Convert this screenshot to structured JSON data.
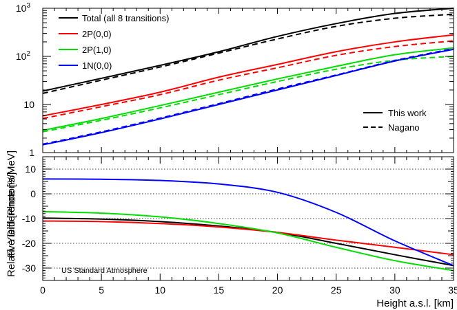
{
  "chart_data": [
    {
      "type": "line",
      "panel": "top",
      "ylabel": "Fl. Yield [Photons/MeV]",
      "xlim": [
        0,
        35
      ],
      "ylim": [
        1,
        1000
      ],
      "yscale": "log",
      "ytick_labels": [
        {
          "v": 1,
          "base": "1",
          "exp": ""
        },
        {
          "v": 10,
          "base": "10",
          "exp": ""
        },
        {
          "v": 100,
          "base": "10",
          "exp": "2"
        },
        {
          "v": 1000,
          "base": "10",
          "exp": "3"
        }
      ],
      "legend_series": [
        "Total (all 8 transitions)",
        "2P(0,0)",
        "2P(1,0)",
        "1N(0,0)"
      ],
      "legend_styles": [
        "This work",
        "Nagano"
      ],
      "legend_position": "top-left (series), center-right (line styles)",
      "x": [
        0,
        5,
        10,
        15,
        20,
        25,
        30,
        35
      ],
      "series": [
        {
          "name": "Total (all 8 transitions)",
          "source": "This work",
          "color": "#000000",
          "dash": false,
          "values": [
            19,
            35,
            65,
            125,
            260,
            480,
            780,
            1000
          ]
        },
        {
          "name": "Total (all 8 transitions)",
          "source": "Nagano",
          "color": "#000000",
          "dash": true,
          "values": [
            17,
            32,
            60,
            117,
            230,
            420,
            620,
            750
          ]
        },
        {
          "name": "2P(0,0)",
          "source": "This work",
          "color": "#ff0000",
          "dash": false,
          "values": [
            5.8,
            10,
            18,
            37,
            68,
            125,
            200,
            280
          ]
        },
        {
          "name": "2P(0,0)",
          "source": "Nagano",
          "color": "#ff0000",
          "dash": true,
          "values": [
            5.1,
            9,
            16,
            32,
            58,
            105,
            160,
            210
          ]
        },
        {
          "name": "2P(1,0)",
          "source": "This work",
          "color": "#00dd00",
          "dash": false,
          "values": [
            2.9,
            5.1,
            9.5,
            18,
            34,
            62,
            108,
            150
          ]
        },
        {
          "name": "2P(1,0)",
          "source": "Nagano",
          "color": "#00dd00",
          "dash": true,
          "values": [
            2.7,
            4.7,
            8.5,
            16,
            30,
            54,
            83,
            100
          ]
        },
        {
          "name": "1N(0,0)",
          "source": "This work",
          "color": "#0000ff",
          "dash": false,
          "values": [
            1.45,
            2.6,
            5,
            10,
            20,
            40,
            80,
            140
          ]
        },
        {
          "name": "1N(0,0)",
          "source": "Nagano",
          "color": "#0000ff",
          "dash": true,
          "values": [
            1.5,
            2.7,
            5.2,
            10.4,
            21,
            41,
            82,
            145
          ]
        }
      ]
    },
    {
      "type": "line",
      "panel": "bottom",
      "xlabel": "Height a.s.l. [km]",
      "ylabel": "Relative Difference [%]",
      "xlim": [
        0,
        35
      ],
      "ylim": [
        -35,
        15
      ],
      "xticks": [
        0,
        5,
        10,
        15,
        20,
        25,
        30,
        35
      ],
      "yticks": [
        -30,
        -20,
        -10,
        0,
        10
      ],
      "grid": "horizontal dotted at y ticks",
      "annotation": "US Standard Atmosphere",
      "x": [
        0,
        5,
        10,
        15,
        20,
        25,
        30,
        35
      ],
      "series": [
        {
          "name": "Total (all 8 transitions)",
          "color": "#000000",
          "values": [
            -9.8,
            -10.2,
            -11.2,
            -13,
            -15.6,
            -20,
            -24.6,
            -29
          ]
        },
        {
          "name": "2P(0,0)",
          "color": "#ff0000",
          "values": [
            -11,
            -11.2,
            -12,
            -13.4,
            -15.6,
            -18.7,
            -21.6,
            -24.6
          ]
        },
        {
          "name": "2P(1,0)",
          "color": "#00dd00",
          "values": [
            -7.2,
            -7.8,
            -9.3,
            -12,
            -15.8,
            -21.6,
            -27,
            -31
          ]
        },
        {
          "name": "1N(0,0)",
          "color": "#0000ff",
          "values": [
            6,
            5.9,
            5.4,
            4,
            0.6,
            -7.5,
            -19,
            -29
          ]
        }
      ]
    }
  ]
}
